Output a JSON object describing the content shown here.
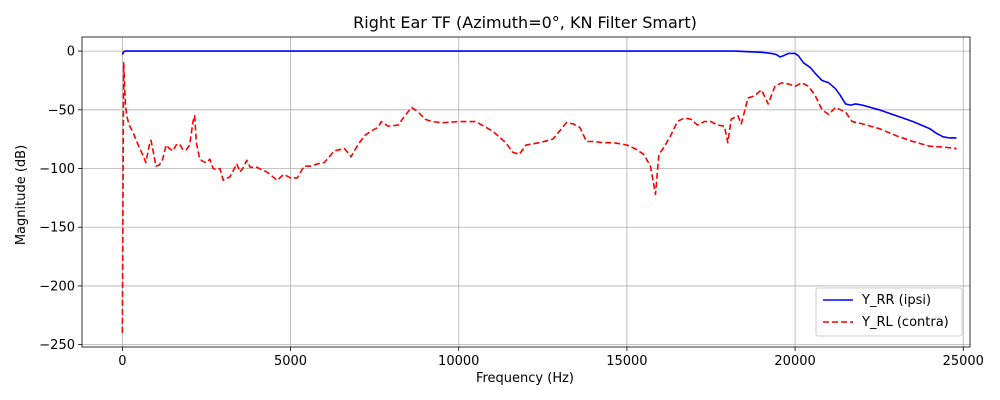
{
  "chart_data": {
    "type": "line",
    "title": "Right Ear TF (Azimuth=0°, KN Filter Smart)",
    "xlabel": "Frequency (Hz)",
    "ylabel": "Magnitude (dB)",
    "xlim": [
      -1200,
      25200
    ],
    "ylim": [
      -252,
      12
    ],
    "xticks": [
      0,
      5000,
      10000,
      15000,
      20000,
      25000
    ],
    "xtick_labels": [
      "0",
      "5000",
      "10000",
      "15000",
      "20000",
      "25000"
    ],
    "yticks": [
      0,
      -50,
      -100,
      -150,
      -200,
      -250
    ],
    "ytick_labels": [
      "0",
      "−50",
      "−100",
      "−150",
      "−200",
      "−250"
    ],
    "grid": true,
    "legend_position": "bottom-right",
    "series": [
      {
        "name": "Y_RR (ipsi)",
        "color": "#0000ff",
        "dash": "solid",
        "points": [
          [
            0,
            -3
          ],
          [
            30,
            -1
          ],
          [
            80,
            0
          ],
          [
            500,
            0
          ],
          [
            2000,
            0
          ],
          [
            5000,
            0
          ],
          [
            10000,
            0
          ],
          [
            15000,
            0
          ],
          [
            17500,
            0
          ],
          [
            18200,
            0
          ],
          [
            18600,
            -0.5
          ],
          [
            19000,
            -1
          ],
          [
            19300,
            -2
          ],
          [
            19450,
            -3
          ],
          [
            19550,
            -5
          ],
          [
            19650,
            -4
          ],
          [
            19800,
            -2
          ],
          [
            20000,
            -2
          ],
          [
            20100,
            -4
          ],
          [
            20250,
            -10
          ],
          [
            20450,
            -14
          ],
          [
            20600,
            -19
          ],
          [
            20800,
            -25
          ],
          [
            21000,
            -27
          ],
          [
            21200,
            -32
          ],
          [
            21350,
            -38
          ],
          [
            21500,
            -45
          ],
          [
            21650,
            -46
          ],
          [
            21800,
            -45
          ],
          [
            22000,
            -46
          ],
          [
            22500,
            -50
          ],
          [
            23000,
            -55
          ],
          [
            23500,
            -60
          ],
          [
            24000,
            -66
          ],
          [
            24200,
            -70
          ],
          [
            24400,
            -73
          ],
          [
            24600,
            -74
          ],
          [
            24800,
            -74
          ]
        ]
      },
      {
        "name": "Y_RL (contra)",
        "color": "#ff0000",
        "dash": "dashed",
        "points": [
          [
            0,
            -240
          ],
          [
            15,
            -150
          ],
          [
            30,
            -60
          ],
          [
            40,
            -10
          ],
          [
            60,
            -25
          ],
          [
            90,
            -45
          ],
          [
            130,
            -55
          ],
          [
            200,
            -63
          ],
          [
            300,
            -68
          ],
          [
            400,
            -75
          ],
          [
            500,
            -82
          ],
          [
            600,
            -88
          ],
          [
            700,
            -95
          ],
          [
            800,
            -80
          ],
          [
            850,
            -76
          ],
          [
            900,
            -83
          ],
          [
            1000,
            -98
          ],
          [
            1100,
            -97
          ],
          [
            1200,
            -92
          ],
          [
            1300,
            -80
          ],
          [
            1400,
            -83
          ],
          [
            1500,
            -85
          ],
          [
            1600,
            -80
          ],
          [
            1700,
            -79
          ],
          [
            1800,
            -84
          ],
          [
            1900,
            -84
          ],
          [
            2000,
            -80
          ],
          [
            2100,
            -60
          ],
          [
            2150,
            -55
          ],
          [
            2200,
            -78
          ],
          [
            2300,
            -92
          ],
          [
            2400,
            -94
          ],
          [
            2500,
            -95
          ],
          [
            2600,
            -92
          ],
          [
            2700,
            -100
          ],
          [
            2800,
            -101
          ],
          [
            2900,
            -100
          ],
          [
            3000,
            -110
          ],
          [
            3200,
            -107
          ],
          [
            3400,
            -96
          ],
          [
            3500,
            -103
          ],
          [
            3600,
            -99
          ],
          [
            3700,
            -93
          ],
          [
            3800,
            -99
          ],
          [
            4000,
            -99
          ],
          [
            4300,
            -103
          ],
          [
            4600,
            -110
          ],
          [
            4800,
            -105
          ],
          [
            5000,
            -108
          ],
          [
            5200,
            -108
          ],
          [
            5400,
            -98
          ],
          [
            5600,
            -98
          ],
          [
            5800,
            -96
          ],
          [
            6000,
            -95
          ],
          [
            6300,
            -85
          ],
          [
            6600,
            -83
          ],
          [
            6800,
            -90
          ],
          [
            7000,
            -80
          ],
          [
            7200,
            -72
          ],
          [
            7400,
            -68
          ],
          [
            7600,
            -65
          ],
          [
            7700,
            -60
          ],
          [
            7900,
            -64
          ],
          [
            8200,
            -63
          ],
          [
            8400,
            -55
          ],
          [
            8600,
            -48
          ],
          [
            8800,
            -52
          ],
          [
            9000,
            -58
          ],
          [
            9200,
            -60
          ],
          [
            9500,
            -61
          ],
          [
            10000,
            -60
          ],
          [
            10500,
            -60
          ],
          [
            11000,
            -68
          ],
          [
            11400,
            -78
          ],
          [
            11600,
            -86
          ],
          [
            11800,
            -88
          ],
          [
            12000,
            -80
          ],
          [
            12400,
            -78
          ],
          [
            12800,
            -75
          ],
          [
            13000,
            -68
          ],
          [
            13200,
            -61
          ],
          [
            13400,
            -62
          ],
          [
            13600,
            -65
          ],
          [
            13800,
            -77
          ],
          [
            14000,
            -77
          ],
          [
            14300,
            -78
          ],
          [
            14600,
            -78
          ],
          [
            15000,
            -80
          ],
          [
            15300,
            -84
          ],
          [
            15500,
            -88
          ],
          [
            15700,
            -98
          ],
          [
            15850,
            -122
          ],
          [
            15950,
            -88
          ],
          [
            16100,
            -82
          ],
          [
            16300,
            -72
          ],
          [
            16500,
            -60
          ],
          [
            16700,
            -57
          ],
          [
            16900,
            -58
          ],
          [
            17100,
            -63
          ],
          [
            17300,
            -60
          ],
          [
            17500,
            -60
          ],
          [
            17700,
            -63
          ],
          [
            17900,
            -64
          ],
          [
            18000,
            -78
          ],
          [
            18100,
            -58
          ],
          [
            18300,
            -55
          ],
          [
            18400,
            -62
          ],
          [
            18600,
            -40
          ],
          [
            18800,
            -38
          ],
          [
            19000,
            -33
          ],
          [
            19200,
            -45
          ],
          [
            19400,
            -30
          ],
          [
            19600,
            -27
          ],
          [
            19800,
            -28
          ],
          [
            20000,
            -30
          ],
          [
            20200,
            -27
          ],
          [
            20400,
            -30
          ],
          [
            20600,
            -38
          ],
          [
            20800,
            -50
          ],
          [
            21000,
            -54
          ],
          [
            21200,
            -48
          ],
          [
            21500,
            -52
          ],
          [
            21700,
            -60
          ],
          [
            22000,
            -62
          ],
          [
            22500,
            -66
          ],
          [
            23000,
            -72
          ],
          [
            23500,
            -77
          ],
          [
            24000,
            -81
          ],
          [
            24500,
            -82
          ],
          [
            24800,
            -83
          ]
        ]
      }
    ]
  }
}
